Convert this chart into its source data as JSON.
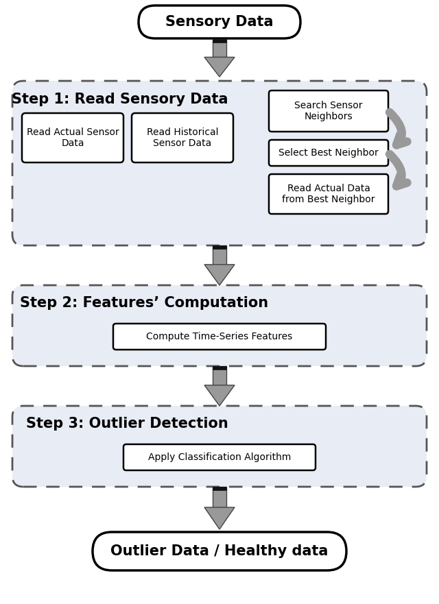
{
  "bg_color": "#ffffff",
  "title_oval": "Sensory Data",
  "bottom_oval": "Outlier Data / Healthy data",
  "step1_title": "Step 1: Read Sensory Data",
  "step2_title": "Step 2: Features’ Computation",
  "step3_title": "Step 3: Outlier Detection",
  "box1a": "Read Actual Sensor\nData",
  "box1b": "Read Historical\nSensor Data",
  "box_search": "Search Sensor\nNeighbors",
  "box_select": "Select Best Neighbor",
  "box_read_best": "Read Actual Data\nfrom Best Neighbor",
  "box_compute": "Compute Time-Series Features",
  "box_classify": "Apply Classification Algorithm",
  "step_bg": "#e8ecf5",
  "arrow_gray": "#a0a0a0",
  "arrow_dark": "#555555",
  "box_edge": "#000000",
  "dash_edge": "#555555"
}
